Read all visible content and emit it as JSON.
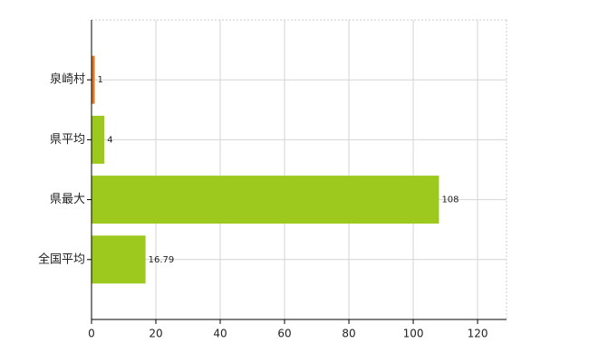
{
  "chart_data": {
    "type": "hbar",
    "categories": [
      "泉崎村",
      "県平均",
      "県最大",
      "全国平均"
    ],
    "values": [
      1,
      4,
      108,
      16.79
    ],
    "colors": [
      "#e0781e",
      "#9dc81e",
      "#9dc81e",
      "#9dc81e"
    ],
    "xlim": [
      0,
      129
    ],
    "xticks": [
      0,
      20,
      40,
      60,
      80,
      100,
      120
    ],
    "grid": true
  }
}
